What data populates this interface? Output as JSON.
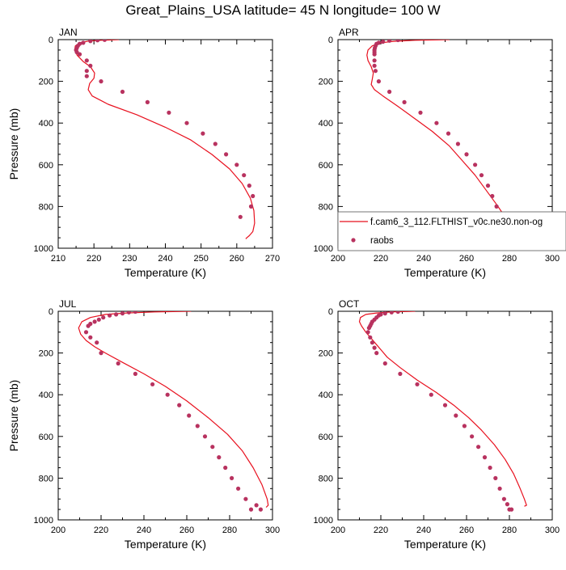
{
  "figure": {
    "title": "Great_Plains_USA  latitude= 45 N longitude= 100 W",
    "model_color": "#e8101e",
    "obs_color": "#b8325f",
    "legend": {
      "model_label": "f.cam6_3_112.FLTHIST_v0c.ne30.non-og",
      "obs_label": "raobs"
    }
  },
  "chart_data": [
    {
      "type": "line",
      "panel": "JAN",
      "title": "JAN",
      "xlabel": "Temperature (K)",
      "ylabel": "Pressure (mb)",
      "xlim": [
        210,
        270
      ],
      "ylim": [
        1000,
        0
      ],
      "xticks": [
        210,
        220,
        230,
        240,
        250,
        260,
        270
      ],
      "yticks": [
        0,
        200,
        400,
        600,
        800,
        1000
      ],
      "series": [
        {
          "name": "f.cam6_3_112.FLTHIST_v0c.ne30.non-og",
          "kind": "line",
          "x": [
            227,
            222,
            218.5,
            216,
            214.8,
            214.6,
            215.3,
            217,
            219,
            220.2,
            220,
            218.8,
            218.4,
            219.5,
            224,
            232,
            240,
            247,
            253,
            258,
            261.5,
            263.8,
            264.8,
            265,
            264.5,
            263.5,
            262.8,
            262.5
          ],
          "y": [
            0,
            3,
            7,
            15,
            30,
            50,
            75,
            105,
            130,
            160,
            185,
            210,
            240,
            270,
            310,
            360,
            420,
            480,
            550,
            620,
            690,
            760,
            820,
            880,
            920,
            940,
            950,
            955
          ]
        },
        {
          "name": "raobs",
          "kind": "scatter",
          "x": [
            223,
            221,
            219,
            217,
            216,
            215.5,
            215.2,
            215,
            215.2,
            216,
            218,
            219,
            218,
            218,
            222,
            228,
            235,
            241,
            246,
            250.5,
            254,
            257,
            260,
            262,
            263.5,
            264.5,
            264,
            261
          ],
          "y": [
            1,
            3,
            7,
            15,
            20,
            30,
            40,
            50,
            60,
            70,
            100,
            125,
            150,
            175,
            200,
            250,
            300,
            350,
            400,
            450,
            500,
            550,
            600,
            650,
            700,
            750,
            800,
            850
          ]
        }
      ]
    },
    {
      "type": "line",
      "panel": "APR",
      "title": "APR",
      "xlabel": "Temperature (K)",
      "ylabel": "",
      "xlim": [
        200,
        300
      ],
      "ylim": [
        1000,
        0
      ],
      "xticks": [
        200,
        220,
        240,
        260,
        280,
        300
      ],
      "yticks": [
        0,
        200,
        400,
        600,
        800,
        1000
      ],
      "series": [
        {
          "name": "f.cam6_3_112.FLTHIST_v0c.ne30.non-og",
          "kind": "line",
          "x": [
            252,
            236,
            226,
            220,
            216,
            214,
            213.5,
            214,
            215.5,
            216.5,
            216,
            215.5,
            217,
            221,
            228,
            236,
            244,
            252,
            258,
            264,
            269,
            274,
            278,
            281,
            282.5,
            282,
            281
          ],
          "y": [
            0,
            3,
            8,
            15,
            30,
            50,
            75,
            100,
            130,
            160,
            190,
            215,
            240,
            270,
            320,
            380,
            440,
            510,
            580,
            650,
            720,
            790,
            850,
            900,
            930,
            945,
            950
          ]
        },
        {
          "name": "raobs",
          "kind": "scatter",
          "x": [
            228,
            224,
            221,
            219,
            218,
            217.5,
            217.2,
            217,
            217,
            217,
            217,
            217,
            217.5,
            219,
            224,
            231,
            238.5,
            246,
            251.5,
            256,
            260,
            264,
            267,
            270,
            272,
            274,
            276,
            278.5,
            279.5
          ],
          "y": [
            2,
            5,
            10,
            15,
            20,
            30,
            40,
            50,
            60,
            70,
            100,
            125,
            150,
            200,
            250,
            300,
            350,
            400,
            450,
            500,
            550,
            600,
            650,
            700,
            750,
            800,
            850,
            900,
            950
          ]
        }
      ]
    },
    {
      "type": "line",
      "panel": "JUL",
      "title": "JUL",
      "xlabel": "Temperature (K)",
      "ylabel": "Pressure (mb)",
      "xlim": [
        200,
        300
      ],
      "ylim": [
        1000,
        0
      ],
      "xticks": [
        200,
        220,
        240,
        260,
        280,
        300
      ],
      "yticks": [
        0,
        200,
        400,
        600,
        800,
        1000
      ],
      "series": [
        {
          "name": "f.cam6_3_112.FLTHIST_v0c.ne30.non-og",
          "kind": "line",
          "x": [
            262,
            245,
            232,
            222,
            215,
            211,
            209.5,
            210.5,
            213,
            217,
            222,
            230,
            240,
            250,
            260,
            270,
            279,
            286,
            291,
            295,
            297.5,
            298,
            297
          ],
          "y": [
            0,
            3,
            8,
            15,
            30,
            50,
            80,
            110,
            140,
            170,
            200,
            245,
            300,
            360,
            430,
            510,
            590,
            670,
            750,
            830,
            900,
            930,
            940
          ]
        },
        {
          "name": "raobs",
          "kind": "scatter",
          "x": [
            236,
            233,
            230,
            227,
            224,
            221,
            219,
            217,
            215,
            214,
            213,
            215,
            218,
            220,
            228,
            236,
            244,
            251,
            256.5,
            261,
            265,
            268.5,
            272,
            275,
            278,
            281,
            284,
            287.5,
            290,
            292.5,
            294.5
          ],
          "y": [
            2,
            5,
            10,
            15,
            20,
            30,
            40,
            50,
            60,
            70,
            100,
            125,
            150,
            200,
            250,
            300,
            350,
            400,
            450,
            500,
            550,
            600,
            650,
            700,
            750,
            800,
            850,
            900,
            950,
            930,
            950
          ]
        }
      ]
    },
    {
      "type": "line",
      "panel": "OCT",
      "title": "OCT",
      "xlabel": "Temperature (K)",
      "ylabel": "",
      "xlim": [
        200,
        300
      ],
      "ylim": [
        1000,
        0
      ],
      "xticks": [
        200,
        220,
        240,
        260,
        280,
        300
      ],
      "yticks": [
        0,
        200,
        400,
        600,
        800,
        1000
      ],
      "series": [
        {
          "name": "f.cam6_3_112.FLTHIST_v0c.ne30.non-og",
          "kind": "line",
          "x": [
            236,
            225,
            218,
            213,
            210.5,
            210,
            211,
            213,
            215.5,
            218,
            220.5,
            223,
            229,
            237,
            246,
            254,
            261,
            267,
            273,
            278,
            282,
            285,
            287,
            288,
            287
          ],
          "y": [
            0,
            3,
            8,
            15,
            30,
            50,
            70,
            100,
            130,
            160,
            190,
            220,
            270,
            330,
            390,
            450,
            510,
            570,
            640,
            710,
            780,
            850,
            900,
            930,
            935
          ]
        },
        {
          "name": "raobs",
          "kind": "scatter",
          "x": [
            228,
            225,
            222,
            220,
            219,
            218,
            217,
            216,
            215.5,
            215,
            214.5,
            214,
            215,
            216,
            217,
            218,
            222,
            229,
            237,
            243.5,
            250,
            255,
            259,
            262.5,
            265.5,
            268.5,
            271,
            273.5,
            275.5,
            277.5,
            279,
            280,
            281
          ],
          "y": [
            2,
            5,
            10,
            15,
            20,
            30,
            40,
            50,
            60,
            70,
            80,
            100,
            125,
            150,
            175,
            200,
            250,
            300,
            350,
            400,
            450,
            500,
            550,
            600,
            650,
            700,
            750,
            800,
            850,
            900,
            925,
            950,
            950
          ]
        }
      ]
    }
  ]
}
